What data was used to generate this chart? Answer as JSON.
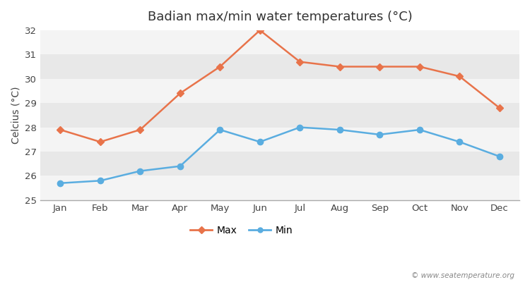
{
  "title": "Badian max/min water temperatures (°C)",
  "ylabel": "Celcius (°C)",
  "months": [
    "Jan",
    "Feb",
    "Mar",
    "Apr",
    "May",
    "Jun",
    "Jul",
    "Aug",
    "Sep",
    "Oct",
    "Nov",
    "Dec"
  ],
  "max_values": [
    27.9,
    27.4,
    27.9,
    29.4,
    30.5,
    32.0,
    30.7,
    30.5,
    30.5,
    30.5,
    30.1,
    28.8
  ],
  "min_values": [
    25.7,
    25.8,
    26.2,
    26.4,
    27.9,
    27.4,
    28.0,
    27.9,
    27.7,
    27.9,
    27.4,
    26.8
  ],
  "max_color": "#e8734a",
  "min_color": "#5aade0",
  "figure_bg": "#ffffff",
  "plot_bg": "#ffffff",
  "band_color_dark": "#e8e8e8",
  "band_color_light": "#f4f4f4",
  "ylim": [
    25,
    32
  ],
  "yticks": [
    25,
    26,
    27,
    28,
    29,
    30,
    31,
    32
  ],
  "watermark": "© www.seatemperature.org",
  "legend_max": "Max",
  "legend_min": "Min",
  "title_fontsize": 13,
  "label_fontsize": 10,
  "tick_fontsize": 9.5,
  "axis_color": "#aaaaaa"
}
